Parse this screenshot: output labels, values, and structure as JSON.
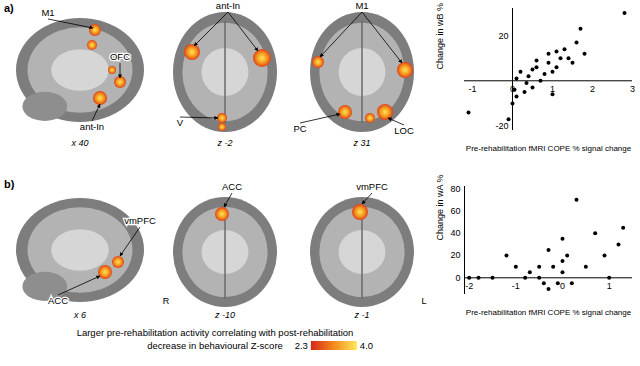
{
  "figure": {
    "rows": [
      {
        "label": "a)",
        "slices": [
          {
            "coord": "x 40",
            "labels": [
              "M1",
              "OFC",
              "ant-In"
            ]
          },
          {
            "coord": "z -2",
            "labels": [
              "ant-In",
              "V"
            ]
          },
          {
            "coord": "z 31",
            "labels": [
              "M1",
              "PC",
              "LOC"
            ]
          }
        ]
      },
      {
        "label": "b)",
        "slices": [
          {
            "coord": "x 6",
            "labels": [
              "ACC",
              "vmPFC"
            ]
          },
          {
            "coord": "z -10",
            "labels": [
              "ACC"
            ]
          },
          {
            "coord": "z -1",
            "labels": [
              "vmPFC"
            ]
          }
        ]
      }
    ],
    "hemisphere_labels": [
      "R",
      "L"
    ],
    "caption": "Larger pre-rehabilitation activity correlating with post-rehabilitation decrease in behavioural Z-score",
    "colorbar": {
      "range": [
        2.3,
        4.0
      ],
      "ticks": [
        2.3,
        {
          "value": 4,
          "label": "4.0"
        }
      ]
    }
  },
  "chart_data": [
    {
      "type": "scatter",
      "xlabel": "Pre-rehabilitation fMRI COPE % signal change",
      "ylabel": "Change in wB %",
      "x": [
        -1.1,
        -0.1,
        0.0,
        0.05,
        0.1,
        0.1,
        0.2,
        0.3,
        0.35,
        0.4,
        0.5,
        0.5,
        0.6,
        0.6,
        0.7,
        0.8,
        0.9,
        0.9,
        1.0,
        1.0,
        1.1,
        1.1,
        1.2,
        1.3,
        1.4,
        1.5,
        1.6,
        1.7,
        1.8,
        2.8
      ],
      "values": [
        -14,
        -17,
        -10,
        -4,
        1,
        -7,
        4,
        -5,
        -1,
        2,
        5,
        -3,
        6,
        9,
        0,
        3,
        12,
        8,
        -6,
        4,
        13,
        6,
        10,
        14,
        10,
        8,
        17,
        23,
        12,
        30
      ],
      "xlim": [
        -1.2,
        3
      ],
      "ylim": [
        -22,
        32
      ],
      "xticks": [
        -1,
        0,
        1,
        2,
        3
      ],
      "yticks": [
        -20,
        20
      ],
      "color": "#000000",
      "marker": "circle"
    },
    {
      "type": "scatter",
      "xlabel": "Pre-rehabilitation fMRI COPE % signal change",
      "ylabel": "Change in wA %",
      "x": [
        -2,
        -1.8,
        -1.5,
        -1.2,
        -1.0,
        -0.8,
        -0.7,
        -0.5,
        -0.4,
        -0.3,
        -0.2,
        -0.1,
        0,
        0,
        0,
        0.1,
        0.2,
        0.3,
        0.5,
        0.7,
        0.9,
        1.0,
        1.2,
        1.3,
        -0.3,
        -0.5
      ],
      "values": [
        0,
        0,
        0,
        20,
        10,
        0,
        5,
        0,
        -5,
        -10,
        10,
        -5,
        35,
        15,
        5,
        20,
        -5,
        70,
        10,
        40,
        20,
        0,
        30,
        45,
        25,
        10
      ],
      "xlim": [
        -2.1,
        1.5
      ],
      "ylim": [
        -15,
        82
      ],
      "xticks": [
        -2,
        -1,
        0,
        1
      ],
      "yticks": [
        0,
        20,
        40,
        60,
        80
      ],
      "color": "#000000",
      "marker": "circle"
    }
  ]
}
